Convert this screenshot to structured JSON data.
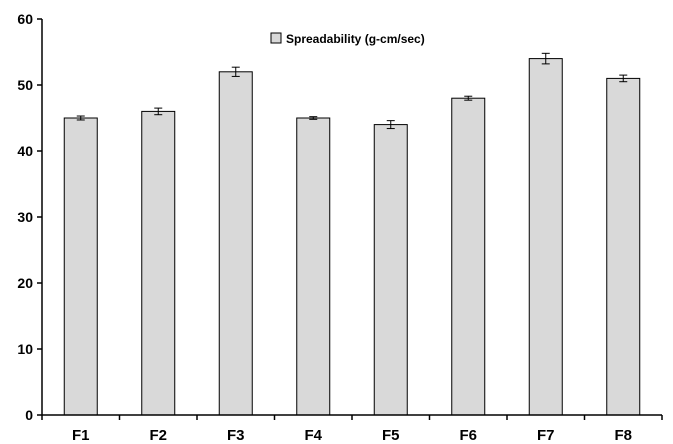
{
  "chart_data": {
    "type": "bar",
    "categories": [
      "F1",
      "F2",
      "F3",
      "F4",
      "F5",
      "F6",
      "F7",
      "F8"
    ],
    "series": [
      {
        "name": "Spreadability (g-cm/sec)",
        "values": [
          45,
          46,
          52,
          45,
          44,
          48,
          54,
          51
        ],
        "errors": [
          0.3,
          0.5,
          0.7,
          0.2,
          0.6,
          0.3,
          0.8,
          0.5
        ]
      }
    ],
    "title": "",
    "xlabel": "",
    "ylabel": "",
    "ylim": [
      0,
      60
    ],
    "yticks": [
      0,
      10,
      20,
      30,
      40,
      50,
      60
    ],
    "grid": false,
    "legend": "top-center",
    "colors": {
      "bar_fill": "#d9d9d9",
      "bar_stroke": "#000000",
      "axis": "#000000"
    }
  }
}
